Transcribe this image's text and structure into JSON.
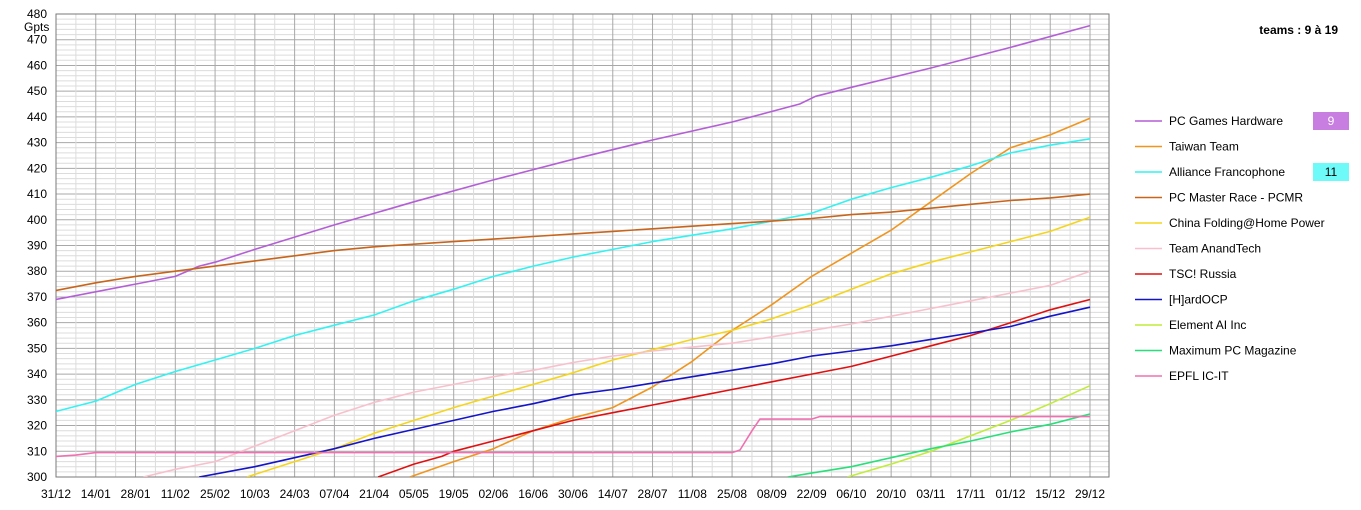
{
  "chart_data": {
    "type": "line",
    "title": "teams : 9 à 19",
    "ylabel": "Gpts",
    "xlabel": "",
    "ylim": [
      300,
      480
    ],
    "yticks": [
      300,
      310,
      320,
      330,
      340,
      350,
      360,
      370,
      380,
      390,
      400,
      410,
      420,
      430,
      440,
      450,
      460,
      470,
      480
    ],
    "x_ticks": [
      "31/12",
      "14/01",
      "28/01",
      "11/02",
      "25/02",
      "10/03",
      "24/03",
      "07/04",
      "21/04",
      "05/05",
      "19/05",
      "02/06",
      "16/06",
      "30/06",
      "14/07",
      "28/07",
      "11/08",
      "25/08",
      "08/09",
      "22/09",
      "06/10",
      "20/10",
      "03/11",
      "17/11",
      "01/12",
      "15/12",
      "29/12"
    ],
    "grid": true,
    "legend_position": "right",
    "series": [
      {
        "name": "PC Games Hardware",
        "color": "#b45fd6",
        "rank": "9",
        "badge_color": "#c77ee0",
        "points": [
          [
            0,
            369
          ],
          [
            2,
            375
          ],
          [
            3,
            378
          ],
          [
            3.6,
            382
          ],
          [
            4,
            383.5
          ],
          [
            5,
            388.5
          ],
          [
            7,
            398
          ],
          [
            9,
            407
          ],
          [
            11,
            415.5
          ],
          [
            13,
            423.5
          ],
          [
            15,
            431
          ],
          [
            17,
            438
          ],
          [
            18.7,
            445
          ],
          [
            19.1,
            448
          ],
          [
            20,
            451.5
          ],
          [
            22,
            459
          ],
          [
            24,
            467
          ],
          [
            26,
            475.5
          ]
        ]
      },
      {
        "name": "Taiwan Team",
        "color": "#f0951e",
        "points": [
          [
            8.9,
            300
          ],
          [
            10,
            306
          ],
          [
            11,
            311
          ],
          [
            12,
            318
          ],
          [
            13,
            323
          ],
          [
            14,
            327
          ],
          [
            15,
            335
          ],
          [
            16,
            345
          ],
          [
            17,
            357
          ],
          [
            18,
            367
          ],
          [
            19,
            378
          ],
          [
            20,
            387
          ],
          [
            21,
            396
          ],
          [
            22,
            407
          ],
          [
            23,
            418
          ],
          [
            24,
            428
          ],
          [
            25,
            433
          ],
          [
            26,
            439.5
          ]
        ]
      },
      {
        "name": "Alliance Francophone",
        "color": "#33f2f2",
        "rank": "11",
        "badge_color": "#6ffafa",
        "points": [
          [
            0,
            325.5
          ],
          [
            1,
            329.5
          ],
          [
            2,
            336
          ],
          [
            3,
            341
          ],
          [
            4,
            345.5
          ],
          [
            5,
            350
          ],
          [
            6,
            355
          ],
          [
            7,
            359
          ],
          [
            8,
            363
          ],
          [
            9,
            368.5
          ],
          [
            10,
            373
          ],
          [
            11,
            378
          ],
          [
            12,
            382
          ],
          [
            13,
            385.5
          ],
          [
            14,
            388.5
          ],
          [
            15,
            391.5
          ],
          [
            16,
            394
          ],
          [
            17,
            396.5
          ],
          [
            18,
            399.5
          ],
          [
            19,
            402.5
          ],
          [
            20,
            408
          ],
          [
            21,
            412.5
          ],
          [
            22,
            416.5
          ],
          [
            23,
            421
          ],
          [
            24,
            426
          ],
          [
            25,
            429
          ],
          [
            26,
            431.5
          ]
        ]
      },
      {
        "name": "PC Master Race - PCMR",
        "color": "#c8651b",
        "points": [
          [
            0,
            372.5
          ],
          [
            1,
            375.5
          ],
          [
            2,
            378
          ],
          [
            3,
            380
          ],
          [
            4,
            382
          ],
          [
            5,
            384
          ],
          [
            6,
            386
          ],
          [
            7,
            388
          ],
          [
            8,
            389.5
          ],
          [
            9,
            390.5
          ],
          [
            10,
            391.5
          ],
          [
            11,
            392.5
          ],
          [
            12,
            393.5
          ],
          [
            13,
            394.5
          ],
          [
            14,
            395.5
          ],
          [
            15,
            396.5
          ],
          [
            16,
            397.5
          ],
          [
            17,
            398.5
          ],
          [
            18,
            399.5
          ],
          [
            19,
            400.5
          ],
          [
            20,
            402
          ],
          [
            21,
            403
          ],
          [
            22,
            404.5
          ],
          [
            23,
            406
          ],
          [
            24,
            407.5
          ],
          [
            25,
            408.5
          ],
          [
            26,
            410
          ]
        ]
      },
      {
        "name": "China Folding@Home Power",
        "color": "#f5d51c",
        "points": [
          [
            4.8,
            300
          ],
          [
            6,
            306
          ],
          [
            7,
            311
          ],
          [
            8,
            317
          ],
          [
            9,
            322
          ],
          [
            10,
            327
          ],
          [
            11,
            331.5
          ],
          [
            12,
            336
          ],
          [
            13,
            340.5
          ],
          [
            14,
            345.5
          ],
          [
            15,
            349.5
          ],
          [
            16,
            353.5
          ],
          [
            17,
            357
          ],
          [
            18,
            361.5
          ],
          [
            19,
            367
          ],
          [
            20,
            373
          ],
          [
            21,
            379
          ],
          [
            22,
            383.5
          ],
          [
            23,
            387.5
          ],
          [
            24,
            391.5
          ],
          [
            25,
            395.5
          ],
          [
            26,
            401
          ]
        ]
      },
      {
        "name": "Team AnandTech",
        "color": "#f8c0cc",
        "points": [
          [
            2.2,
            300
          ],
          [
            3,
            303
          ],
          [
            4,
            306
          ],
          [
            5,
            312
          ],
          [
            6,
            318
          ],
          [
            7,
            324
          ],
          [
            8,
            329
          ],
          [
            9,
            333
          ],
          [
            10,
            336
          ],
          [
            11,
            339
          ],
          [
            12,
            341.5
          ],
          [
            13,
            344.5
          ],
          [
            14,
            347
          ],
          [
            15,
            349
          ],
          [
            16,
            350.5
          ],
          [
            17,
            352
          ],
          [
            18,
            354.5
          ],
          [
            19,
            357
          ],
          [
            20,
            359.5
          ],
          [
            21,
            362.5
          ],
          [
            22,
            365.5
          ],
          [
            23,
            368.5
          ],
          [
            24,
            371.5
          ],
          [
            25,
            374.5
          ],
          [
            26,
            380
          ]
        ]
      },
      {
        "name": "TSC! Russia",
        "color": "#e01010",
        "points": [
          [
            8.1,
            300
          ],
          [
            9,
            305
          ],
          [
            9.7,
            308
          ],
          [
            10,
            310
          ],
          [
            11,
            314
          ],
          [
            12,
            318
          ],
          [
            13,
            322
          ],
          [
            14,
            325
          ],
          [
            15,
            328
          ],
          [
            16,
            331
          ],
          [
            17,
            334
          ],
          [
            18,
            337
          ],
          [
            19,
            340
          ],
          [
            20,
            343
          ],
          [
            21,
            347
          ],
          [
            22,
            351
          ],
          [
            23,
            355
          ],
          [
            24,
            360
          ],
          [
            25,
            365
          ],
          [
            26,
            369
          ]
        ]
      },
      {
        "name": "[H]ardOCP",
        "color": "#1414c8",
        "points": [
          [
            3.6,
            300
          ],
          [
            5,
            304
          ],
          [
            6,
            307.5
          ],
          [
            7,
            311
          ],
          [
            8,
            315
          ],
          [
            9,
            318.5
          ],
          [
            10,
            322
          ],
          [
            11,
            325.5
          ],
          [
            12,
            328.5
          ],
          [
            13,
            332
          ],
          [
            14,
            334
          ],
          [
            15,
            336.5
          ],
          [
            16,
            339
          ],
          [
            17,
            341.5
          ],
          [
            18,
            344
          ],
          [
            19,
            347
          ],
          [
            20,
            349
          ],
          [
            21,
            351
          ],
          [
            22,
            353.5
          ],
          [
            23,
            356
          ],
          [
            24,
            358.5
          ],
          [
            25,
            362.5
          ],
          [
            26,
            366
          ]
        ]
      },
      {
        "name": "Element AI Inc",
        "color": "#c0ec3a",
        "points": [
          [
            19.9,
            300
          ],
          [
            21,
            305
          ],
          [
            22,
            310
          ],
          [
            23,
            316
          ],
          [
            24,
            322
          ],
          [
            25,
            328.5
          ],
          [
            26,
            335.5
          ]
        ]
      },
      {
        "name": "Maximum PC Magazine",
        "color": "#28e07a",
        "points": [
          [
            18.4,
            300
          ],
          [
            19,
            301.5
          ],
          [
            20,
            304
          ],
          [
            21,
            307.5
          ],
          [
            22,
            311
          ],
          [
            23,
            314
          ],
          [
            24,
            317.5
          ],
          [
            25,
            320.5
          ],
          [
            26,
            324.5
          ]
        ]
      },
      {
        "name": "EPFL IC-IT",
        "color": "#f070b0",
        "points": [
          [
            0,
            308
          ],
          [
            0.5,
            308.5
          ],
          [
            1,
            309.5
          ],
          [
            2,
            309.5
          ],
          [
            17,
            309.5
          ],
          [
            17.2,
            310.5
          ],
          [
            17.5,
            318
          ],
          [
            17.7,
            322.5
          ],
          [
            18,
            322.5
          ],
          [
            19,
            322.5
          ],
          [
            19.2,
            323.5
          ],
          [
            26,
            323.5
          ]
        ]
      }
    ]
  }
}
